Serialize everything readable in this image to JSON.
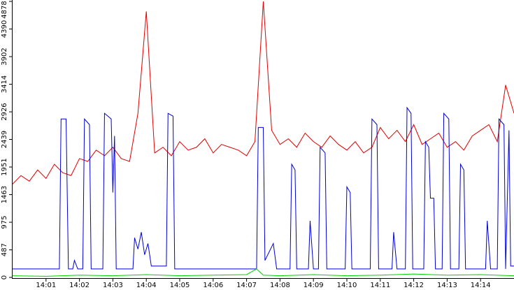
{
  "chart_data": {
    "type": "line",
    "xlim": [
      0,
      15
    ],
    "ylim": [
      0,
      4878
    ],
    "yticks": [
      0,
      487,
      975,
      1463,
      1951,
      2439,
      2926,
      3414,
      3902,
      4390,
      4878
    ],
    "xticks": [
      {
        "value": 1,
        "label": "14:01"
      },
      {
        "value": 2,
        "label": "14:02"
      },
      {
        "value": 3,
        "label": "14:03"
      },
      {
        "value": 4,
        "label": "14:04"
      },
      {
        "value": 5,
        "label": "14:05"
      },
      {
        "value": 6,
        "label": "14:06"
      },
      {
        "value": 7,
        "label": "14:07"
      },
      {
        "value": 8,
        "label": "14:08"
      },
      {
        "value": 9,
        "label": "14:09"
      },
      {
        "value": 10,
        "label": "14:10"
      },
      {
        "value": 11,
        "label": "14:11"
      },
      {
        "value": 12,
        "label": "14:12"
      },
      {
        "value": 13,
        "label": "14:13"
      },
      {
        "value": 14,
        "label": "14:14"
      }
    ],
    "series": [
      {
        "color": "#e00000",
        "x": [
          0,
          0.25,
          0.5,
          0.75,
          1,
          1.25,
          1.5,
          1.75,
          2,
          2.25,
          2.5,
          2.75,
          3,
          3.25,
          3.5,
          3.75,
          4,
          4.25,
          4.5,
          4.75,
          5,
          5.25,
          5.5,
          5.75,
          6,
          6.25,
          6.5,
          6.75,
          7,
          7.25,
          7.5,
          7.75,
          8,
          8.25,
          8.5,
          8.75,
          9,
          9.25,
          9.5,
          9.75,
          10,
          10.25,
          10.5,
          10.75,
          11,
          11.25,
          11.5,
          11.75,
          12,
          12.25,
          12.5,
          12.75,
          13,
          13.25,
          13.5,
          13.75,
          14,
          14.25,
          14.5,
          14.75,
          15
        ],
        "values": [
          1650,
          1800,
          1700,
          1900,
          1750,
          2000,
          1850,
          1800,
          2100,
          2050,
          2250,
          2150,
          2300,
          2100,
          2050,
          2900,
          4700,
          2200,
          2300,
          2150,
          2400,
          2250,
          2300,
          2450,
          2200,
          2350,
          2300,
          2250,
          2150,
          2400,
          4878,
          2600,
          2350,
          2450,
          2300,
          2550,
          2400,
          2300,
          2500,
          2350,
          2250,
          2400,
          2200,
          2300,
          2650,
          2450,
          2600,
          2400,
          2700,
          2350,
          2450,
          2550,
          2300,
          2400,
          2250,
          2500,
          2600,
          2700,
          2400,
          3400,
          2900
        ]
      },
      {
        "color": "#0000d0",
        "x": [
          0,
          1.4,
          1.45,
          1.6,
          1.67,
          1.8,
          1.85,
          1.95,
          2.1,
          2.15,
          2.3,
          2.35,
          2.7,
          2.75,
          2.95,
          3.0,
          3.05,
          3.1,
          3.6,
          3.65,
          3.75,
          3.85,
          3.95,
          4.05,
          4.15,
          4.6,
          4.65,
          4.8,
          4.85,
          7.3,
          7.35,
          7.5,
          7.55,
          7.8,
          7.9,
          8.3,
          8.35,
          8.45,
          8.5,
          8.85,
          8.9,
          9.0,
          9.15,
          9.2,
          9.35,
          9.4,
          9.95,
          10.0,
          10.1,
          10.15,
          10.7,
          10.75,
          10.9,
          10.95,
          11.35,
          11.4,
          11.5,
          11.75,
          11.8,
          11.92,
          11.97,
          12.3,
          12.35,
          12.45,
          12.5,
          12.6,
          12.65,
          12.85,
          12.9,
          13.05,
          13.1,
          13.35,
          13.4,
          13.5,
          13.55,
          14.15,
          14.2,
          14.3,
          14.5,
          14.55,
          14.7,
          14.75,
          14.85,
          14.9,
          15
        ],
        "values": [
          150,
          150,
          2800,
          2800,
          150,
          150,
          300,
          150,
          150,
          2800,
          2700,
          150,
          150,
          2900,
          2800,
          1500,
          2500,
          150,
          150,
          700,
          500,
          800,
          400,
          600,
          200,
          200,
          2900,
          2850,
          150,
          150,
          2650,
          2650,
          300,
          600,
          150,
          150,
          2000,
          1900,
          150,
          150,
          1000,
          150,
          150,
          2300,
          2200,
          150,
          150,
          1600,
          1500,
          150,
          150,
          2800,
          2700,
          150,
          150,
          800,
          150,
          150,
          3000,
          2900,
          150,
          150,
          2400,
          2300,
          1400,
          1400,
          150,
          150,
          2900,
          2800,
          150,
          150,
          2000,
          1900,
          150,
          150,
          1000,
          150,
          150,
          2800,
          2700,
          150,
          2600,
          200,
          200
        ]
      },
      {
        "color": "#00d000",
        "x": [
          0,
          1,
          2,
          3,
          4,
          5,
          6,
          7,
          7.3,
          7.5,
          8,
          9,
          10,
          11,
          12,
          13,
          14,
          15
        ],
        "values": [
          30,
          20,
          40,
          30,
          50,
          30,
          40,
          50,
          150,
          40,
          30,
          50,
          30,
          40,
          60,
          40,
          50,
          30
        ]
      }
    ]
  }
}
